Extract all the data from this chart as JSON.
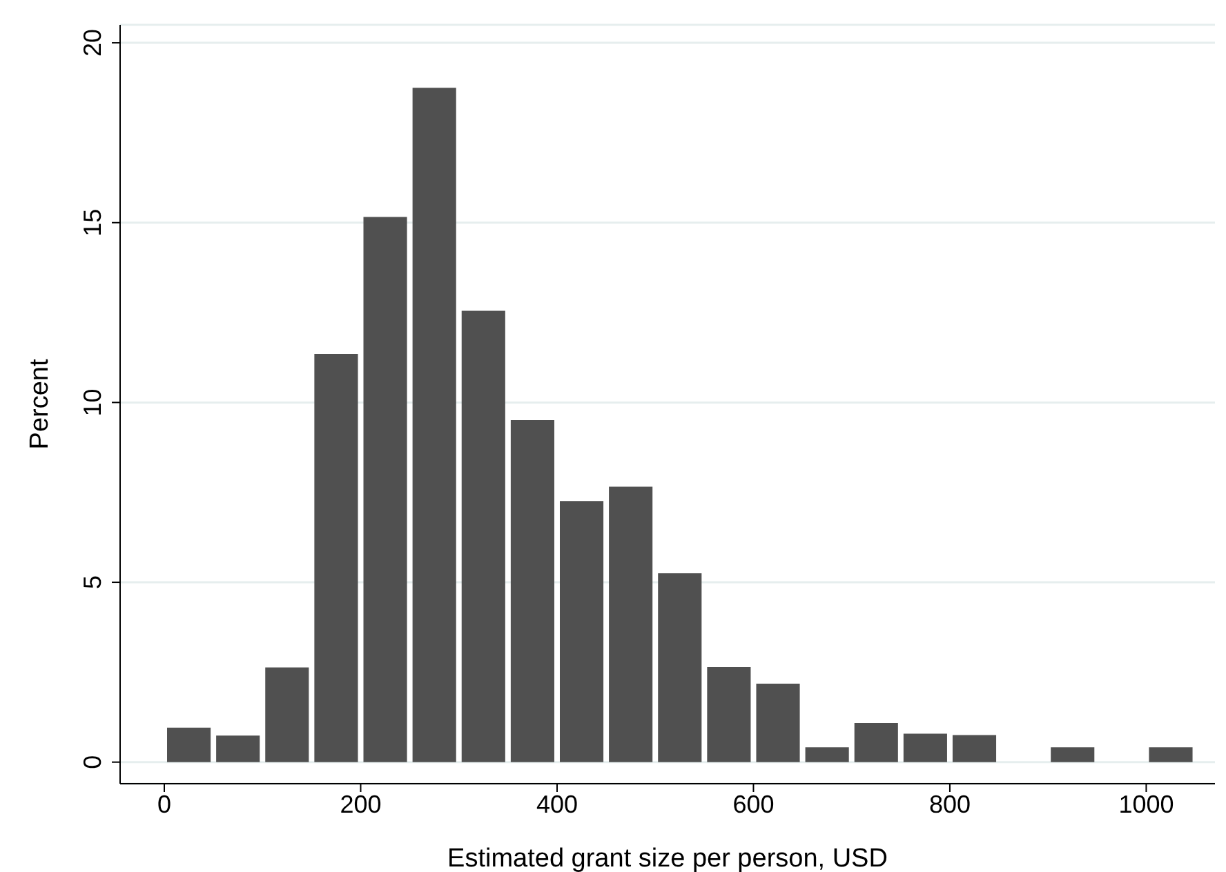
{
  "chart_data": {
    "type": "histogram",
    "xlabel": "Estimated grant size per person, USD",
    "ylabel": "Percent",
    "bins": [
      0,
      50,
      100,
      150,
      200,
      250,
      300,
      350,
      400,
      450,
      500,
      550,
      600,
      650,
      700,
      750,
      800,
      850,
      900,
      950,
      1000,
      1050
    ],
    "values": [
      0.96,
      0.74,
      2.63,
      11.35,
      15.16,
      18.75,
      12.55,
      9.51,
      7.26,
      7.66,
      5.25,
      2.64,
      2.18,
      0.41,
      1.09,
      0.79,
      0.75,
      0,
      0.41,
      0,
      0.41
    ],
    "color": "#505050",
    "xlim": [
      -45,
      1070
    ],
    "xticks": [
      0,
      200,
      400,
      600,
      800,
      1000
    ],
    "ylim": [
      -0.6,
      20.5
    ],
    "yticks": [
      0,
      5,
      10,
      15,
      20
    ],
    "grid": "y"
  }
}
